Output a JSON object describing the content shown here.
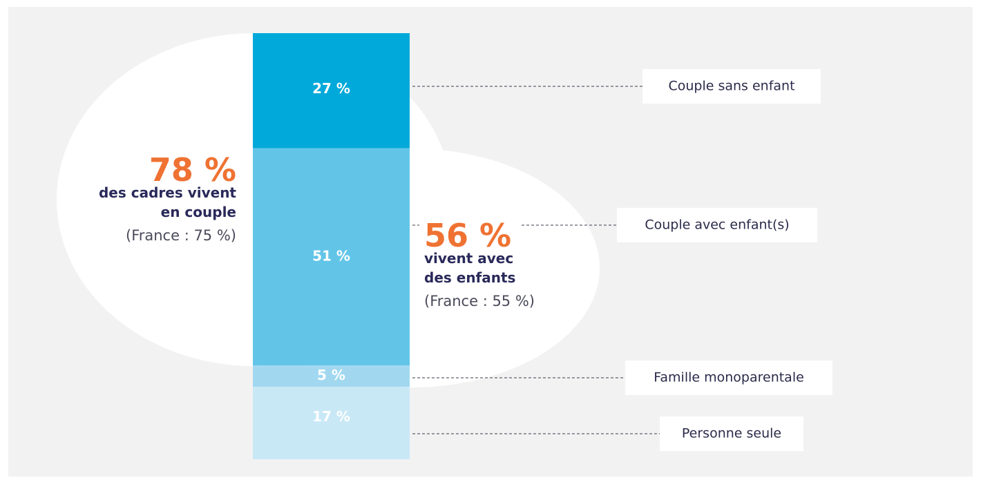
{
  "chart_data": {
    "type": "stacked_bar",
    "series": [
      {
        "name": "Couple sans enfant",
        "color": "#00a9d9",
        "values": [
          27
        ],
        "value_labels": [
          "27 %"
        ]
      },
      {
        "name": "Couple avec enfant(s)",
        "color": "#62c5e8",
        "values": [
          51
        ],
        "value_labels": [
          "51 %"
        ]
      },
      {
        "name": "Famille monoparentale",
        "color": "#a1d8f0",
        "values": [
          5
        ],
        "value_labels": [
          "5 %"
        ]
      },
      {
        "name": "Personne seule",
        "color": "#c9e8f6",
        "values": [
          17
        ],
        "value_labels": [
          "17 %"
        ]
      }
    ],
    "annotations": [
      {
        "headline": "78 %",
        "lines": [
          "des cadres vivent",
          "en couple"
        ],
        "note": "(France : 75 %)"
      },
      {
        "headline": "56 %",
        "lines": [
          "vivent avec",
          "des enfants"
        ],
        "note": "(France : 55 %)"
      }
    ]
  }
}
